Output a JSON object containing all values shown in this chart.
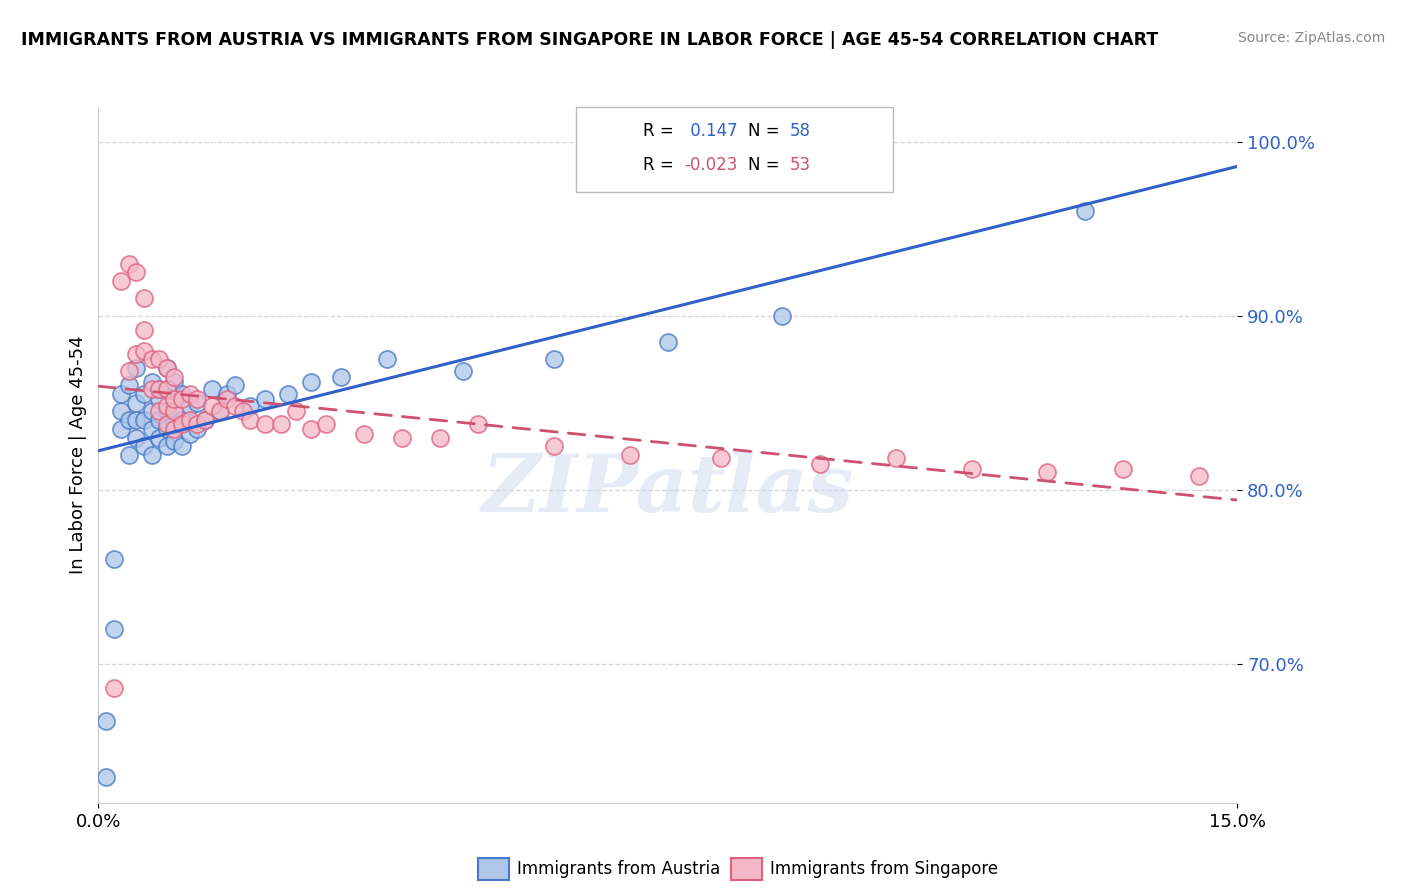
{
  "title": "IMMIGRANTS FROM AUSTRIA VS IMMIGRANTS FROM SINGAPORE IN LABOR FORCE | AGE 45-54 CORRELATION CHART",
  "source": "Source: ZipAtlas.com",
  "ylabel": "In Labor Force | Age 45-54",
  "xlim": [
    0.0,
    0.15
  ],
  "ylim": [
    0.62,
    1.02
  ],
  "ytick_values": [
    0.7,
    0.8,
    0.9,
    1.0
  ],
  "ytick_labels": [
    "70.0%",
    "80.0%",
    "90.0%",
    "100.0%"
  ],
  "r_austria": 0.147,
  "n_austria": 58,
  "r_singapore": -0.023,
  "n_singapore": 53,
  "austria_color": "#aec6e8",
  "singapore_color": "#f4b8c8",
  "austria_edge_color": "#4878c8",
  "singapore_edge_color": "#e06080",
  "austria_line_color": "#3060c8",
  "singapore_line_color": "#d05070",
  "watermark": "ZIPatlas",
  "austria_x": [
    0.001,
    0.001,
    0.002,
    0.002,
    0.003,
    0.003,
    0.003,
    0.004,
    0.004,
    0.004,
    0.005,
    0.005,
    0.005,
    0.005,
    0.006,
    0.006,
    0.006,
    0.007,
    0.007,
    0.007,
    0.007,
    0.008,
    0.008,
    0.008,
    0.008,
    0.009,
    0.009,
    0.009,
    0.009,
    0.009,
    0.01,
    0.01,
    0.01,
    0.01,
    0.01,
    0.011,
    0.011,
    0.011,
    0.012,
    0.012,
    0.013,
    0.013,
    0.014,
    0.015,
    0.016,
    0.017,
    0.018,
    0.02,
    0.022,
    0.025,
    0.028,
    0.032,
    0.038,
    0.048,
    0.06,
    0.075,
    0.09,
    0.13
  ],
  "austria_y": [
    0.667,
    0.635,
    0.72,
    0.76,
    0.835,
    0.845,
    0.855,
    0.82,
    0.84,
    0.86,
    0.83,
    0.84,
    0.85,
    0.87,
    0.825,
    0.84,
    0.855,
    0.82,
    0.835,
    0.845,
    0.862,
    0.83,
    0.84,
    0.852,
    0.858,
    0.825,
    0.835,
    0.845,
    0.858,
    0.87,
    0.828,
    0.838,
    0.845,
    0.852,
    0.862,
    0.825,
    0.84,
    0.855,
    0.832,
    0.848,
    0.835,
    0.85,
    0.84,
    0.858,
    0.845,
    0.855,
    0.86,
    0.848,
    0.852,
    0.855,
    0.862,
    0.865,
    0.875,
    0.868,
    0.875,
    0.885,
    0.9,
    0.96
  ],
  "singapore_x": [
    0.002,
    0.003,
    0.004,
    0.004,
    0.005,
    0.005,
    0.006,
    0.006,
    0.006,
    0.007,
    0.007,
    0.008,
    0.008,
    0.008,
    0.009,
    0.009,
    0.009,
    0.009,
    0.01,
    0.01,
    0.01,
    0.01,
    0.011,
    0.011,
    0.012,
    0.012,
    0.013,
    0.013,
    0.014,
    0.015,
    0.016,
    0.017,
    0.018,
    0.019,
    0.02,
    0.022,
    0.024,
    0.026,
    0.028,
    0.03,
    0.035,
    0.04,
    0.045,
    0.05,
    0.06,
    0.07,
    0.082,
    0.095,
    0.105,
    0.115,
    0.125,
    0.135,
    0.145
  ],
  "singapore_y": [
    0.686,
    0.92,
    0.868,
    0.93,
    0.878,
    0.925,
    0.88,
    0.892,
    0.91,
    0.858,
    0.875,
    0.845,
    0.858,
    0.875,
    0.838,
    0.848,
    0.858,
    0.87,
    0.835,
    0.845,
    0.852,
    0.865,
    0.838,
    0.852,
    0.84,
    0.855,
    0.838,
    0.852,
    0.84,
    0.848,
    0.845,
    0.852,
    0.848,
    0.845,
    0.84,
    0.838,
    0.838,
    0.845,
    0.835,
    0.838,
    0.832,
    0.83,
    0.83,
    0.838,
    0.825,
    0.82,
    0.818,
    0.815,
    0.818,
    0.812,
    0.81,
    0.812,
    0.808
  ]
}
